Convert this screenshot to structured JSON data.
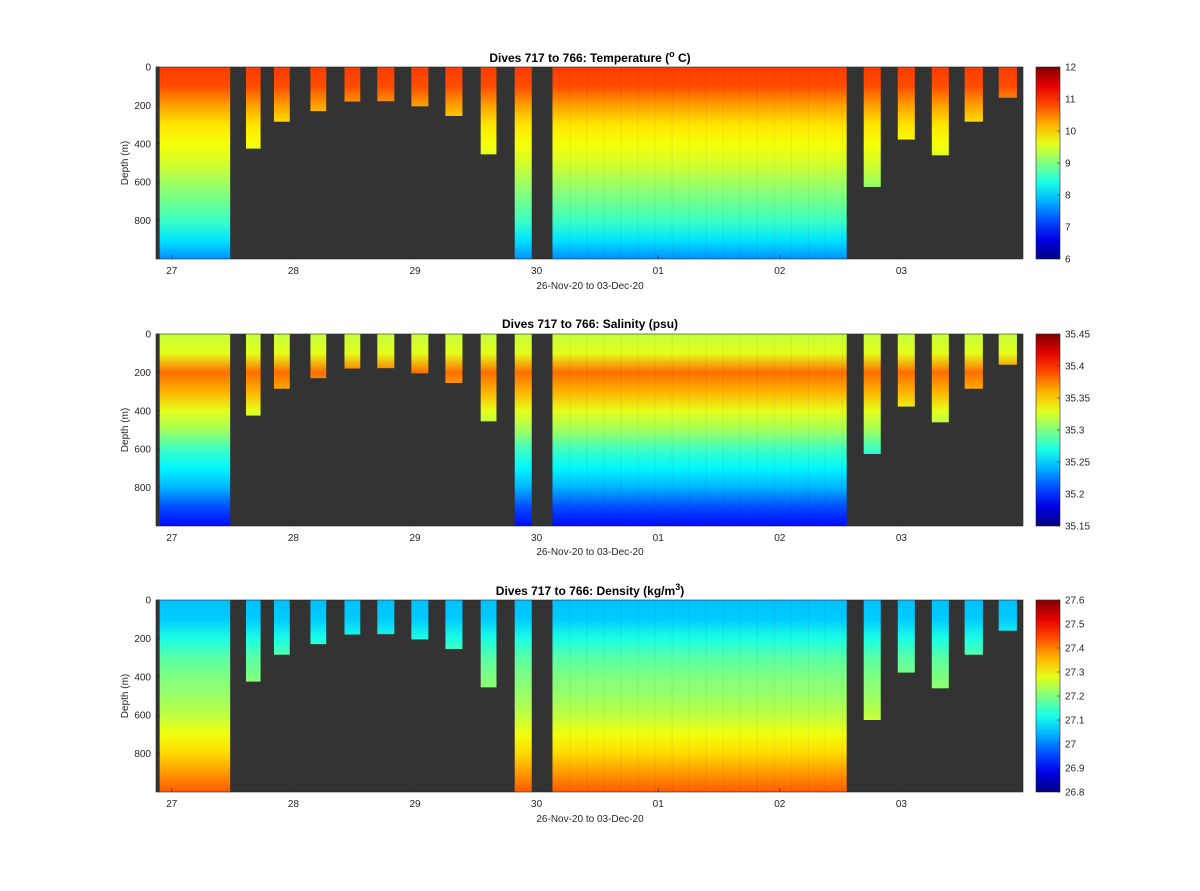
{
  "chart_data": [
    {
      "type": "heatmap",
      "title": "Dives 717 to 766: Temperature (",
      "title_sup": "o",
      "title_tail": " C)",
      "xlabel": "26-Nov-20 to 03-Dec-20",
      "ylabel": "Depth (m)",
      "x_ticks": [
        "27",
        "28",
        "29",
        "30",
        "01",
        "02",
        "03"
      ],
      "y_ticks": [
        0,
        200,
        400,
        600,
        800
      ],
      "ylim": [
        1000,
        0
      ],
      "colorbar": {
        "min": 6,
        "max": 12,
        "ticks": [
          6,
          7,
          8,
          9,
          10,
          11,
          12
        ]
      },
      "colormap": "jet",
      "background_color": "#333333",
      "profile": [
        {
          "depth": 0,
          "value": 10.9
        },
        {
          "depth": 100,
          "value": 10.8
        },
        {
          "depth": 200,
          "value": 10.3
        },
        {
          "depth": 300,
          "value": 9.9
        },
        {
          "depth": 400,
          "value": 9.7
        },
        {
          "depth": 500,
          "value": 9.5
        },
        {
          "depth": 600,
          "value": 9.2
        },
        {
          "depth": 700,
          "value": 8.9
        },
        {
          "depth": 800,
          "value": 8.6
        },
        {
          "depth": 900,
          "value": 8.1
        },
        {
          "depth": 1000,
          "value": 7.6
        }
      ]
    },
    {
      "type": "heatmap",
      "title": "Dives 717 to 766: Salinity (psu)",
      "title_sup": "",
      "title_tail": "",
      "xlabel": "26-Nov-20 to 03-Dec-20",
      "ylabel": "Depth (m)",
      "x_ticks": [
        "27",
        "28",
        "29",
        "30",
        "01",
        "02",
        "03"
      ],
      "y_ticks": [
        0,
        200,
        400,
        600,
        800
      ],
      "ylim": [
        1000,
        0
      ],
      "colorbar": {
        "min": 35.15,
        "max": 35.45,
        "ticks": [
          35.15,
          35.2,
          35.25,
          35.3,
          35.35,
          35.4,
          35.45
        ]
      },
      "colormap": "jet",
      "background_color": "#333333",
      "profile": [
        {
          "depth": 0,
          "value": 35.32
        },
        {
          "depth": 100,
          "value": 35.33
        },
        {
          "depth": 200,
          "value": 35.38
        },
        {
          "depth": 300,
          "value": 35.36
        },
        {
          "depth": 400,
          "value": 35.33
        },
        {
          "depth": 500,
          "value": 35.31
        },
        {
          "depth": 600,
          "value": 35.28
        },
        {
          "depth": 700,
          "value": 35.26
        },
        {
          "depth": 800,
          "value": 35.24
        },
        {
          "depth": 900,
          "value": 35.21
        },
        {
          "depth": 1000,
          "value": 35.19
        }
      ]
    },
    {
      "type": "heatmap",
      "title": "Dives 717 to 766: Density (kg/m",
      "title_sup": "3",
      "title_tail": ")",
      "xlabel": "26-Nov-20 to 03-Dec-20",
      "ylabel": "Depth (m)",
      "x_ticks": [
        "27",
        "28",
        "29",
        "30",
        "01",
        "02",
        "03"
      ],
      "y_ticks": [
        0,
        200,
        400,
        600,
        800
      ],
      "ylim": [
        1000,
        0
      ],
      "colorbar": {
        "min": 26.8,
        "max": 27.6,
        "ticks": [
          26.8,
          26.9,
          27,
          27.1,
          27.2,
          27.3,
          27.4,
          27.5,
          27.6
        ]
      },
      "colormap": "jet",
      "background_color": "#333333",
      "profile": [
        {
          "depth": 0,
          "value": 27.05
        },
        {
          "depth": 100,
          "value": 27.06
        },
        {
          "depth": 200,
          "value": 27.12
        },
        {
          "depth": 300,
          "value": 27.17
        },
        {
          "depth": 400,
          "value": 27.2
        },
        {
          "depth": 500,
          "value": 27.22
        },
        {
          "depth": 600,
          "value": 27.25
        },
        {
          "depth": 700,
          "value": 27.29
        },
        {
          "depth": 800,
          "value": 27.33
        },
        {
          "depth": 900,
          "value": 27.38
        },
        {
          "depth": 1000,
          "value": 27.43
        }
      ]
    }
  ],
  "dives": {
    "day_ticks": [
      27,
      28,
      29,
      30,
      31,
      32,
      33
    ],
    "segments": [
      {
        "start": 26.9,
        "end": 27.48,
        "depth": 1000
      },
      {
        "start": 27.61,
        "end": 27.73,
        "depth": 425
      },
      {
        "start": 27.84,
        "end": 27.97,
        "depth": 285
      },
      {
        "start": 28.14,
        "end": 28.27,
        "depth": 230
      },
      {
        "start": 28.42,
        "end": 28.55,
        "depth": 180
      },
      {
        "start": 28.69,
        "end": 28.83,
        "depth": 178
      },
      {
        "start": 28.97,
        "end": 29.11,
        "depth": 205
      },
      {
        "start": 29.25,
        "end": 29.39,
        "depth": 255
      },
      {
        "start": 29.54,
        "end": 29.67,
        "depth": 455
      },
      {
        "start": 29.82,
        "end": 29.96,
        "depth": 1000
      },
      {
        "start": 30.13,
        "end": 32.55,
        "depth": 1000
      },
      {
        "start": 32.69,
        "end": 32.83,
        "depth": 625
      },
      {
        "start": 32.97,
        "end": 33.11,
        "depth": 378
      },
      {
        "start": 33.25,
        "end": 33.39,
        "depth": 460
      },
      {
        "start": 33.52,
        "end": 33.67,
        "depth": 285
      },
      {
        "start": 33.8,
        "end": 33.95,
        "depth": 160
      }
    ]
  }
}
